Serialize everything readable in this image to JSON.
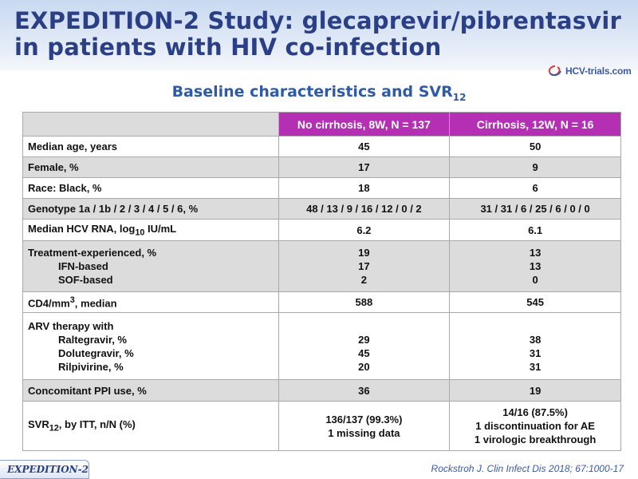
{
  "slide": {
    "title_line1": "EXPEDITION-2 Study: glecaprevir/pibrentasvir",
    "title_line2": "in patients with HIV co-infection",
    "logo_text": "HCV-trials.com",
    "subtitle": "Baseline characteristics and SVR",
    "subtitle_sub": "12",
    "footer_tag": "EXPEDITION-2",
    "reference": "Rockstroh J. Clin Infect Dis 2018; 67:1000-17"
  },
  "table": {
    "columns": [
      "No cirrhosis, 8W, N = 137",
      "Cirrhosis, 12W, N = 16"
    ],
    "rows": {
      "age": {
        "label": "Median age, years",
        "c1": "45",
        "c2": "50"
      },
      "female": {
        "label": "Female, %",
        "c1": "17",
        "c2": "9"
      },
      "race": {
        "label": "Race: Black, %",
        "c1": "18",
        "c2": "6"
      },
      "genotype": {
        "label": "Genotype 1a / 1b / 2 / 3 / 4 / 5 / 6, %",
        "c1": "48 / 13 / 9 / 16 / 12 / 0 / 2",
        "c2": "31 / 31 / 6 / 25 / 6 / 0 / 0"
      },
      "rna": {
        "label_pre": "Median HCV RNA,  log",
        "label_sub": "10",
        "label_post": " IU/mL",
        "c1": "6.2",
        "c2": "6.1"
      },
      "treatment": {
        "label": "Treatment-experienced, %",
        "c1": "19",
        "c2": "13",
        "sub1": {
          "label": "IFN-based",
          "c1": "17",
          "c2": "13"
        },
        "sub2": {
          "label": "SOF-based",
          "c1": "2",
          "c2": "0"
        }
      },
      "cd4": {
        "label_pre": "CD4/mm",
        "label_sup": "3",
        "label_post": ", median",
        "c1": "588",
        "c2": "545"
      },
      "arv": {
        "label": "ARV therapy with",
        "sub1": {
          "label": "Raltegravir, %",
          "c1": "29",
          "c2": "38"
        },
        "sub2": {
          "label": "Dolutegravir, %",
          "c1": "45",
          "c2": "31"
        },
        "sub3": {
          "label": "Rilpivirine, %",
          "c1": "20",
          "c2": "31"
        }
      },
      "ppi": {
        "label": "Concomitant PPI use, %",
        "c1": "36",
        "c2": "19"
      },
      "svr": {
        "label_pre": "SVR",
        "label_sub": "12",
        "label_post": ", by ITT,  n/N (%)",
        "c1_line1": "136/137 (99.3%)",
        "c1_line2": "1 missing data",
        "c2_line1": "14/16 (87.5%)",
        "c2_line2": "1 discontinuation for AE",
        "c2_line3": "1 virologic breakthrough"
      }
    }
  },
  "colors": {
    "title": "#2b3f86",
    "subtitle": "#2f5aa8",
    "header_fill": "#b52fb5",
    "shaded_row": "#dcdcdc"
  }
}
